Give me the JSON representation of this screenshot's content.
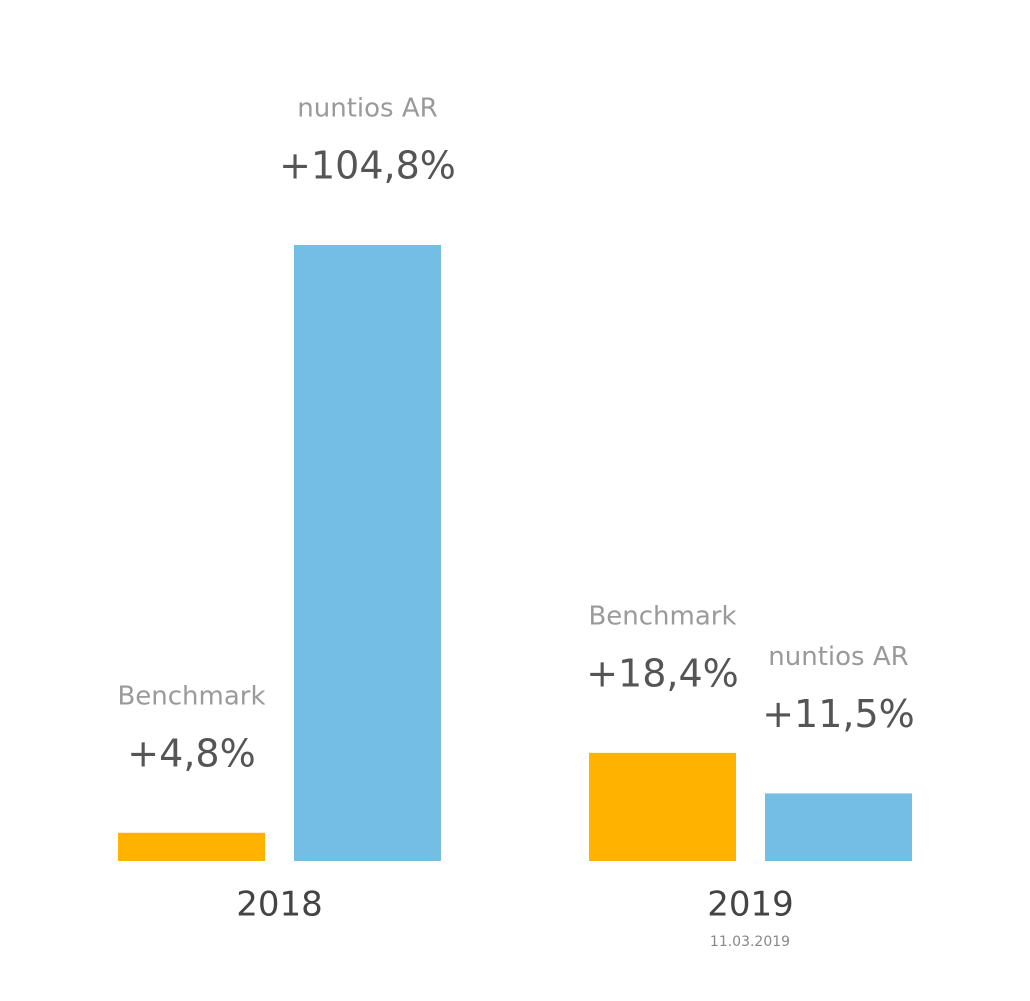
{
  "chart_data": {
    "type": "bar",
    "categories": [
      "2018",
      "2019"
    ],
    "annotation": "11.03.2019",
    "series": [
      {
        "name": "Benchmark",
        "color": "#ffb300",
        "values": [
          4.8,
          18.4
        ],
        "value_labels": [
          "+4,8%",
          "+18,4%"
        ]
      },
      {
        "name": "nuntios AR",
        "color": "#74bde5",
        "values": [
          104.8,
          11.5
        ],
        "value_labels": [
          "+104,8%",
          "+11,5%"
        ]
      }
    ]
  }
}
